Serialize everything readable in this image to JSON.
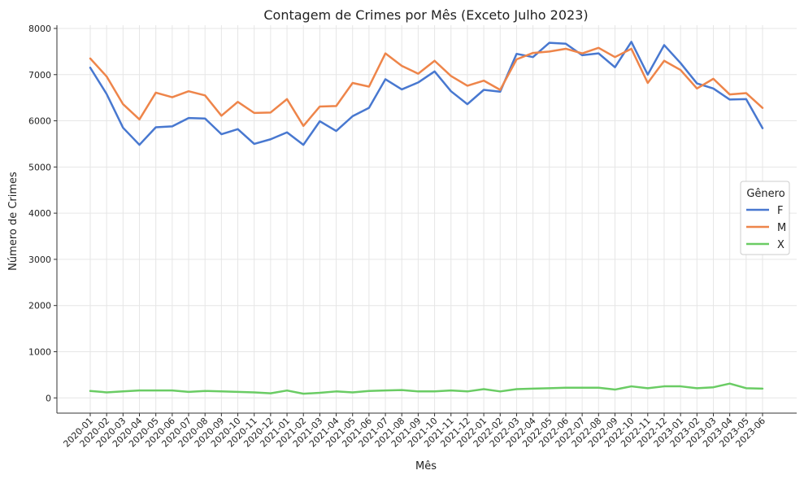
{
  "chart_data": {
    "type": "line",
    "title": "Contagem de Crimes por Mês (Exceto Julho 2023)",
    "xlabel": "Mês",
    "ylabel": "Número de Crimes",
    "ylim": [
      -330,
      8070
    ],
    "yticks": [
      0,
      1000,
      2000,
      3000,
      4000,
      5000,
      6000,
      7000,
      8000
    ],
    "grid": true,
    "legend": {
      "title": "Gênero",
      "placement": "center-right"
    },
    "x": [
      "2020-01",
      "2020-02",
      "2020-03",
      "2020-04",
      "2020-05",
      "2020-06",
      "2020-07",
      "2020-08",
      "2020-09",
      "2020-10",
      "2020-11",
      "2020-12",
      "2021-01",
      "2021-02",
      "2021-03",
      "2021-04",
      "2021-05",
      "2021-06",
      "2021-07",
      "2021-08",
      "2021-09",
      "2021-10",
      "2021-11",
      "2021-12",
      "2022-01",
      "2022-02",
      "2022-03",
      "2022-04",
      "2022-05",
      "2022-06",
      "2022-07",
      "2022-08",
      "2022-09",
      "2022-10",
      "2022-11",
      "2022-12",
      "2023-01",
      "2023-02",
      "2023-03",
      "2023-04",
      "2023-05",
      "2023-06"
    ],
    "series": [
      {
        "name": "F",
        "color": "#4878d0",
        "values": [
          7150,
          6580,
          5850,
          5480,
          5860,
          5880,
          6060,
          6050,
          5710,
          5820,
          5500,
          5600,
          5750,
          5480,
          5990,
          5780,
          6100,
          6280,
          6900,
          6680,
          6830,
          7070,
          6640,
          6360,
          6670,
          6630,
          7450,
          7380,
          7690,
          7670,
          7420,
          7460,
          7160,
          7710,
          7000,
          7640,
          7250,
          6810,
          6700,
          6460,
          6470,
          5840
        ]
      },
      {
        "name": "M",
        "color": "#ee854a",
        "values": [
          7350,
          6960,
          6360,
          6030,
          6610,
          6510,
          6640,
          6550,
          6110,
          6410,
          6170,
          6180,
          6470,
          5890,
          6310,
          6320,
          6820,
          6740,
          7460,
          7190,
          7020,
          7300,
          6970,
          6760,
          6870,
          6670,
          7330,
          7470,
          7500,
          7560,
          7460,
          7580,
          7380,
          7560,
          6820,
          7300,
          7100,
          6700,
          6910,
          6570,
          6600,
          6280
        ]
      },
      {
        "name": "X",
        "color": "#6acc64",
        "values": [
          150,
          120,
          140,
          160,
          160,
          160,
          130,
          150,
          140,
          130,
          120,
          100,
          160,
          90,
          110,
          140,
          120,
          150,
          160,
          170,
          140,
          140,
          160,
          140,
          190,
          140,
          190,
          200,
          210,
          220,
          220,
          220,
          180,
          250,
          210,
          250,
          250,
          210,
          230,
          310,
          210,
          200
        ]
      }
    ]
  }
}
